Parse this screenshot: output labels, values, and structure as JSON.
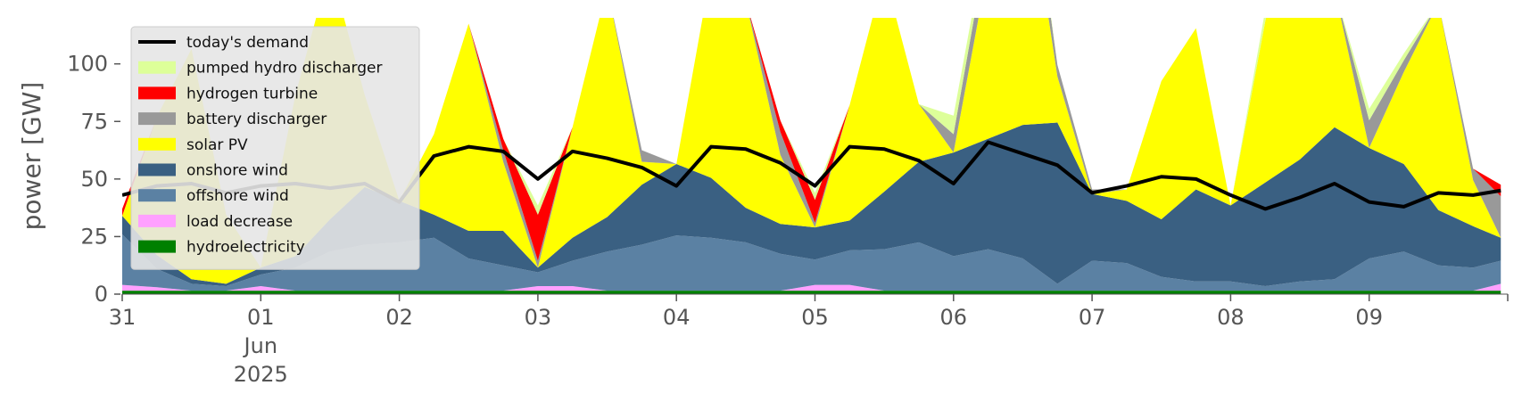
{
  "chart_data": {
    "type": "area",
    "title": "",
    "ylabel": "power [GW]",
    "xlabel": "",
    "ylim": [
      0,
      120
    ],
    "xlim": [
      0,
      10
    ],
    "grid": false,
    "legend_position": "top-left",
    "yticks": [
      0,
      25,
      50,
      75,
      100
    ],
    "ytick_labels": [
      "0",
      "25",
      "50",
      "75",
      "100"
    ],
    "xticks": [
      {
        "pos": 0,
        "lines": [
          "31"
        ]
      },
      {
        "pos": 1,
        "lines": [
          "01",
          "Jun",
          "2025"
        ]
      },
      {
        "pos": 2,
        "lines": [
          "02"
        ]
      },
      {
        "pos": 3,
        "lines": [
          "03"
        ]
      },
      {
        "pos": 4,
        "lines": [
          "04"
        ]
      },
      {
        "pos": 5,
        "lines": [
          "05"
        ]
      },
      {
        "pos": 6,
        "lines": [
          "06"
        ]
      },
      {
        "pos": 7,
        "lines": [
          "07"
        ]
      },
      {
        "pos": 8,
        "lines": [
          "08"
        ]
      },
      {
        "pos": 9,
        "lines": [
          "09"
        ]
      }
    ],
    "x": [
      0.0,
      0.25,
      0.5,
      0.75,
      1.0,
      1.25,
      1.5,
      1.75,
      2.0,
      2.25,
      2.5,
      2.75,
      3.0,
      3.25,
      3.5,
      3.75,
      4.0,
      4.25,
      4.5,
      4.75,
      5.0,
      5.25,
      5.5,
      5.75,
      6.0,
      6.25,
      6.5,
      6.75,
      7.0,
      7.25,
      7.5,
      7.75,
      8.0,
      8.25,
      8.5,
      8.75,
      9.0,
      9.25,
      9.5,
      9.75,
      9.95
    ],
    "series": [
      {
        "name": "hydroelectricity",
        "color": "#008000",
        "values": [
          1.5,
          1.5,
          1.5,
          1.5,
          1.5,
          1.5,
          1.5,
          1.5,
          1.5,
          1.5,
          1.5,
          1.5,
          1.5,
          1.5,
          1.5,
          1.5,
          1.5,
          1.5,
          1.5,
          1.5,
          1.5,
          1.5,
          1.5,
          1.5,
          1.5,
          1.5,
          1.5,
          1.5,
          1.5,
          1.5,
          1.5,
          1.5,
          1.5,
          1.5,
          1.5,
          1.5,
          1.5,
          1.5,
          1.5,
          1.5,
          1.5
        ]
      },
      {
        "name": "load decrease",
        "color": "#ffa0ff",
        "values": [
          2.5,
          1.5,
          0,
          0,
          2,
          0,
          0,
          0,
          0,
          0,
          0,
          0,
          2,
          2,
          0,
          0,
          0,
          0,
          0,
          0,
          2.5,
          2.5,
          0,
          0,
          0,
          0,
          0,
          0,
          0,
          0,
          0,
          0,
          0,
          0,
          0,
          0,
          0,
          0,
          0,
          0,
          3
        ]
      },
      {
        "name": "offshore wind",
        "color": "#5b81a3",
        "values": [
          22,
          8,
          3,
          2,
          5,
          10,
          17,
          20,
          21,
          23,
          14,
          11,
          6,
          11,
          17,
          20,
          24,
          23,
          21,
          16,
          11,
          15,
          18,
          21,
          15,
          18,
          14,
          3,
          13,
          12,
          6,
          4,
          4,
          2,
          4,
          5,
          14,
          17,
          11,
          10,
          10
        ]
      },
      {
        "name": "onshore wind",
        "color": "#3a6082",
        "values": [
          8,
          6,
          2,
          1,
          3,
          5,
          14,
          25,
          18,
          10,
          12,
          15,
          2,
          10,
          15,
          26,
          31,
          26,
          15,
          13,
          14,
          13,
          25,
          35,
          45,
          48,
          58,
          70,
          29,
          27,
          25,
          40,
          33,
          45,
          53,
          66,
          48,
          38,
          24,
          18,
          10
        ]
      },
      {
        "name": "solar PV",
        "color": "#ffff00",
        "values": [
          0,
          60,
          100,
          30,
          0,
          70,
          110,
          40,
          0,
          35,
          90,
          30,
          0,
          48,
          100,
          10,
          0,
          90,
          90,
          30,
          0,
          50,
          95,
          25,
          0,
          75,
          120,
          20,
          0,
          5,
          60,
          70,
          0,
          70,
          120,
          60,
          0,
          40,
          90,
          20,
          0
        ]
      },
      {
        "name": "battery discharger",
        "color": "#999999",
        "values": [
          0,
          0,
          0,
          0,
          0,
          0,
          0,
          0,
          0,
          0,
          0,
          5,
          3,
          0,
          0,
          5,
          0,
          0,
          0,
          10,
          2,
          0,
          0,
          0,
          8,
          12,
          15,
          5,
          2,
          0,
          0,
          0,
          0,
          0,
          0,
          0,
          12,
          5,
          0,
          5,
          18
        ]
      },
      {
        "name": "hydrogen turbine",
        "color": "#ff0000",
        "values": [
          3,
          0,
          0,
          0,
          0,
          0,
          0,
          0,
          0,
          0,
          0,
          5,
          20,
          0,
          0,
          0,
          0,
          0,
          0,
          5,
          10,
          0,
          0,
          0,
          0,
          0,
          0,
          0,
          0,
          0,
          0,
          0,
          0,
          0,
          0,
          0,
          0,
          0,
          0,
          0,
          5
        ]
      },
      {
        "name": "pumped hydro discharger",
        "color": "#ddff99",
        "values": [
          0,
          0,
          0,
          0,
          0,
          0,
          0,
          0,
          0,
          0,
          0,
          0,
          4,
          0,
          0,
          0,
          0,
          0,
          0,
          0,
          3,
          0,
          0,
          0,
          8,
          5,
          6,
          0,
          0,
          0,
          0,
          0,
          0,
          5,
          0,
          0,
          5,
          3,
          0,
          0,
          0
        ]
      }
    ],
    "demand": {
      "name": "today's demand",
      "color": "#000000",
      "values": [
        43,
        47,
        48,
        44,
        47,
        48,
        46,
        48,
        40,
        60,
        64,
        62,
        50,
        62,
        59,
        55,
        47,
        64,
        63,
        57,
        47,
        64,
        63,
        58,
        48,
        66,
        61,
        56,
        44,
        47,
        51,
        50,
        43,
        37,
        42,
        48,
        40,
        38,
        44,
        43,
        45
      ]
    }
  }
}
